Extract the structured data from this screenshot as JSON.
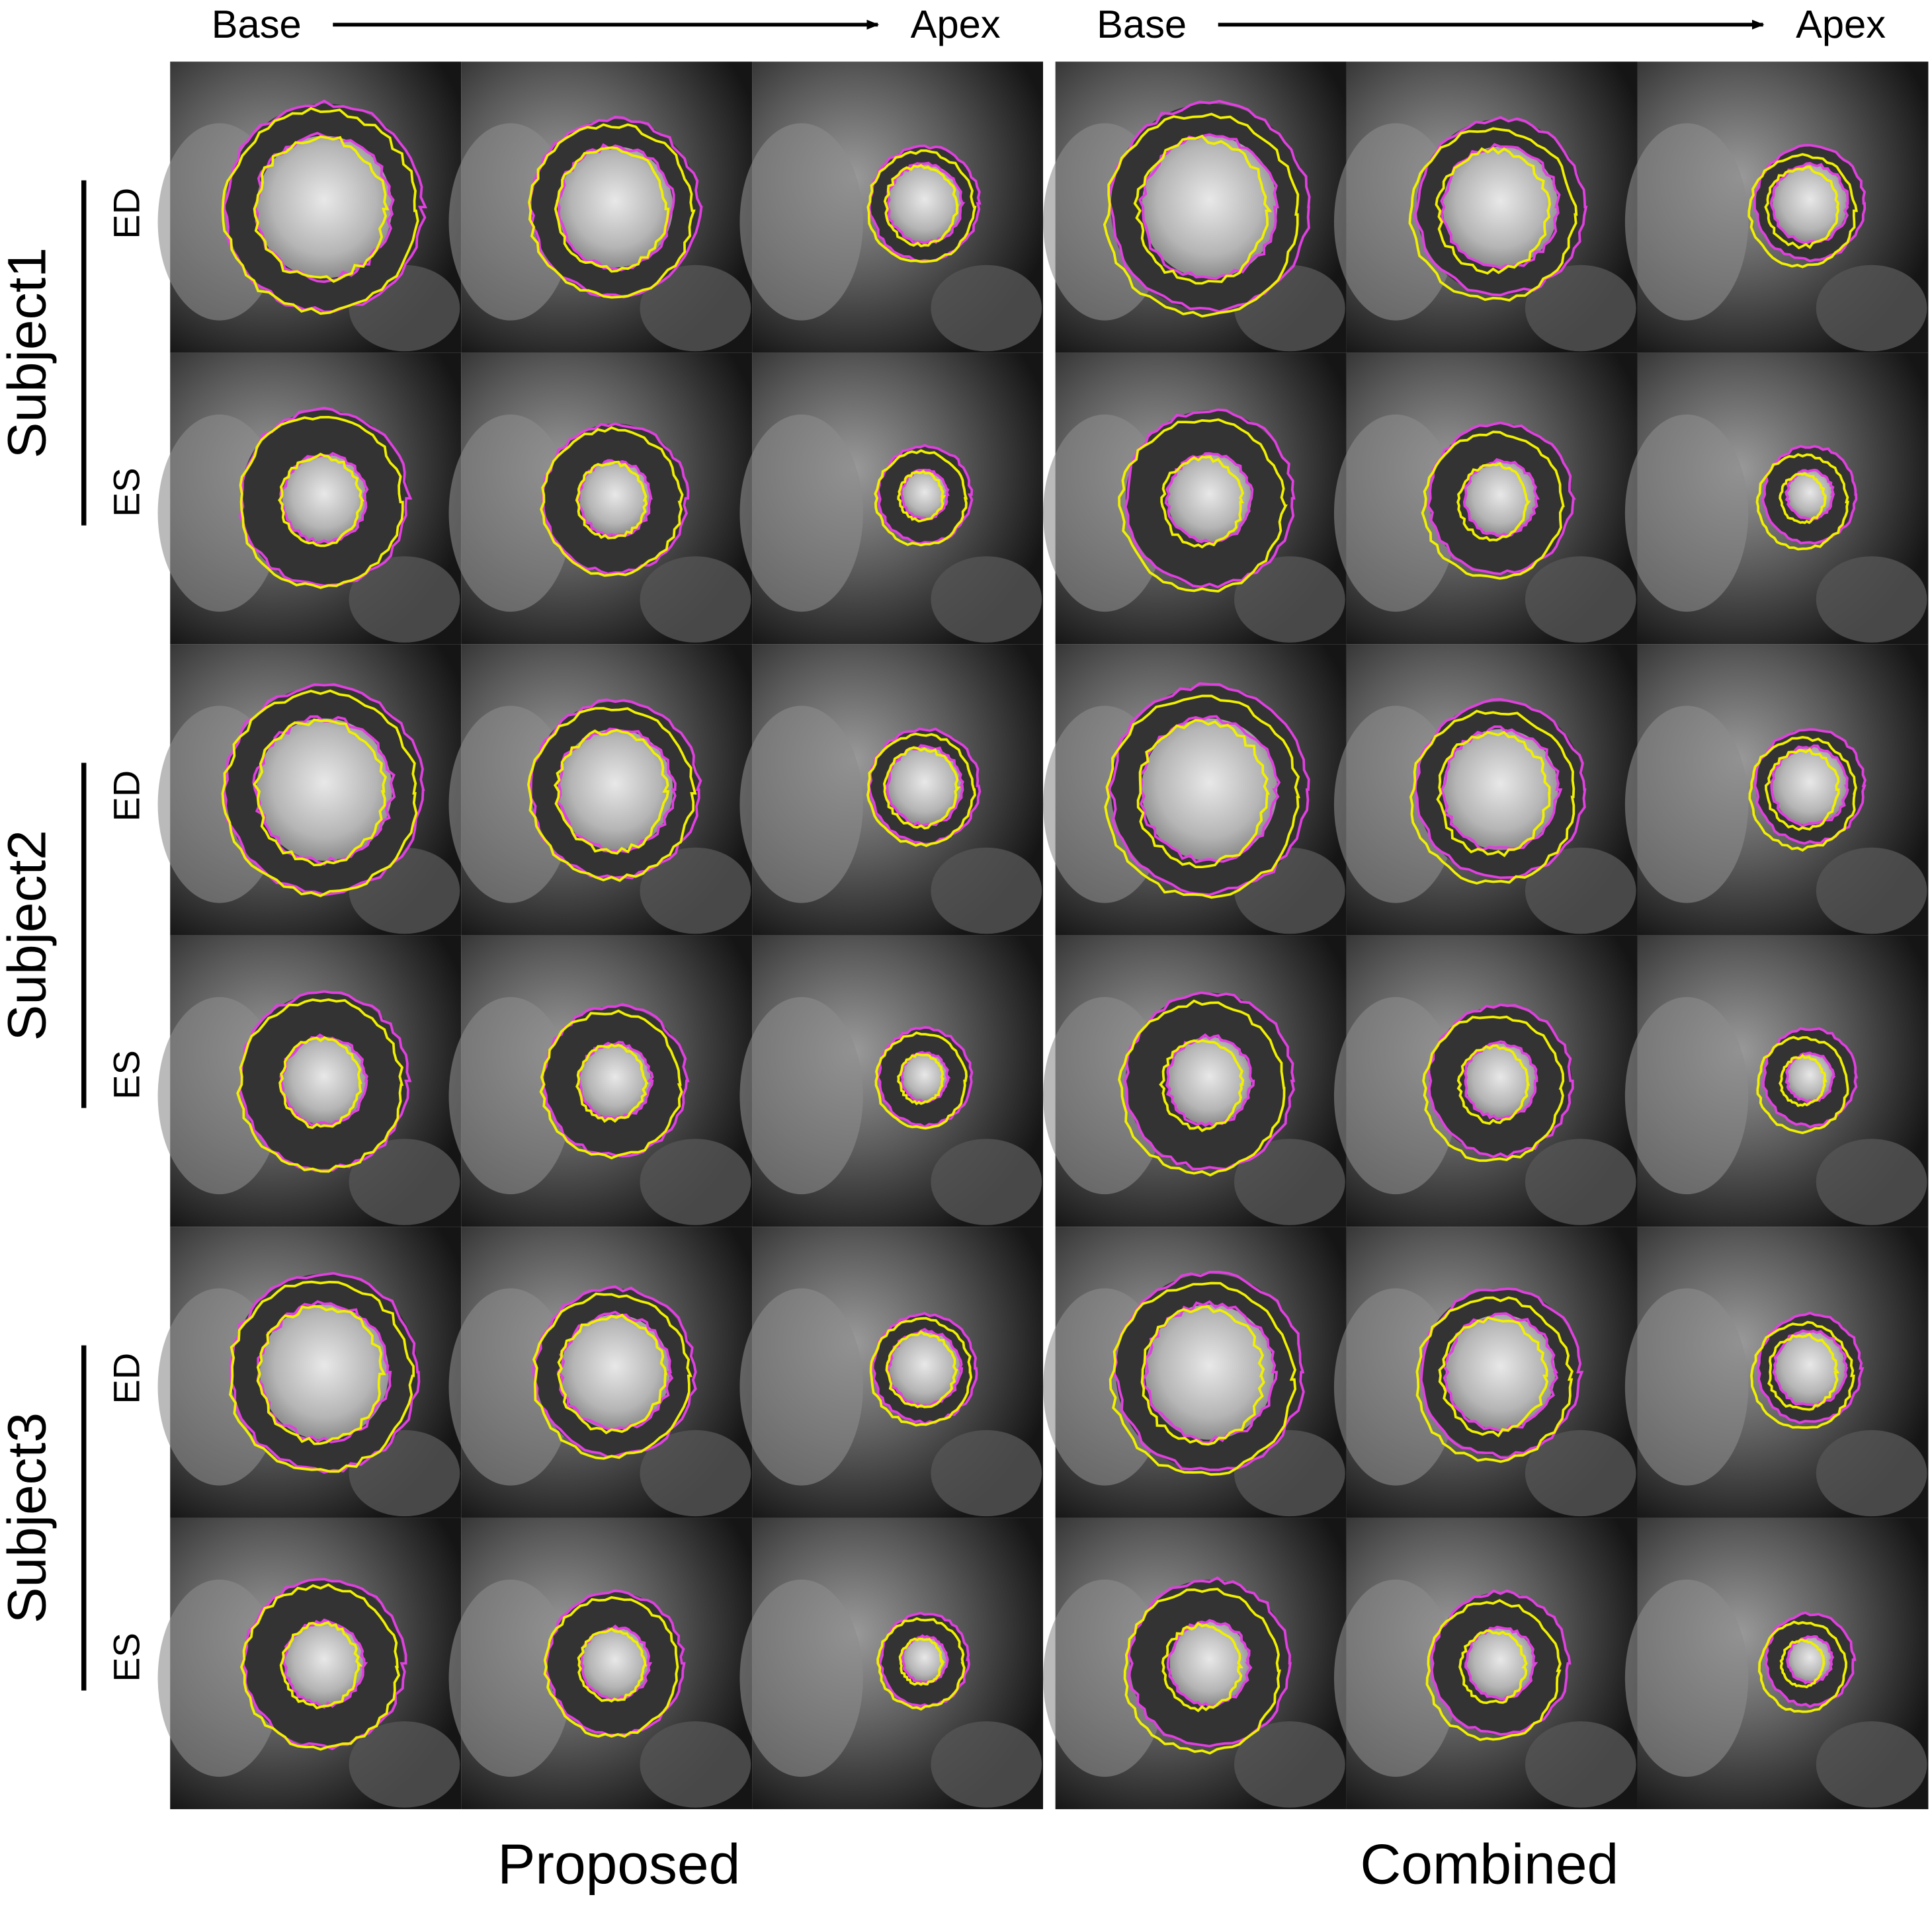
{
  "header": {
    "left": {
      "start": "Base",
      "end": "Apex"
    },
    "right": {
      "start": "Base",
      "end": "Apex"
    }
  },
  "subjects": [
    {
      "label": "Subject1",
      "phases": [
        "ED",
        "ES"
      ]
    },
    {
      "label": "Subject2",
      "phases": [
        "ED",
        "ES"
      ]
    },
    {
      "label": "Subject3",
      "phases": [
        "ED",
        "ES"
      ]
    }
  ],
  "panels": [
    "Proposed",
    "Combined"
  ]
}
